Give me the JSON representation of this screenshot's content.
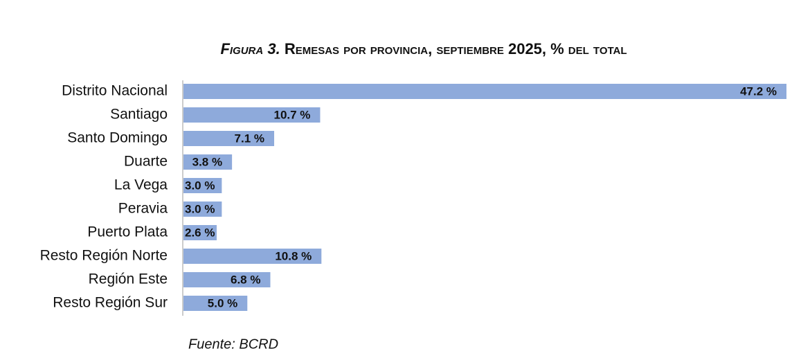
{
  "chart_data": {
    "type": "bar",
    "orientation": "horizontal",
    "figure_label": "Figura 3.",
    "title": "Remesas por provincia, septiembre 2025, % del total",
    "categories": [
      "Distrito Nacional",
      "Santiago",
      "Santo Domingo",
      "Duarte",
      "La Vega",
      "Peravia",
      "Puerto Plata",
      "Resto Región Norte",
      "Región Este",
      "Resto Región Sur"
    ],
    "values": [
      47.2,
      10.7,
      7.1,
      3.8,
      3.0,
      3.0,
      2.6,
      10.8,
      6.8,
      5.0
    ],
    "value_labels": [
      "47.2 %",
      "10.7 %",
      "7.1 %",
      "3.8 %",
      "3.0 %",
      "3.0 %",
      "2.6 %",
      "10.8 %",
      "6.8 %",
      "5.0 %"
    ],
    "color": "#8eaadb",
    "xlim": [
      0,
      47.2
    ],
    "source": "Fuente: BCRD"
  }
}
